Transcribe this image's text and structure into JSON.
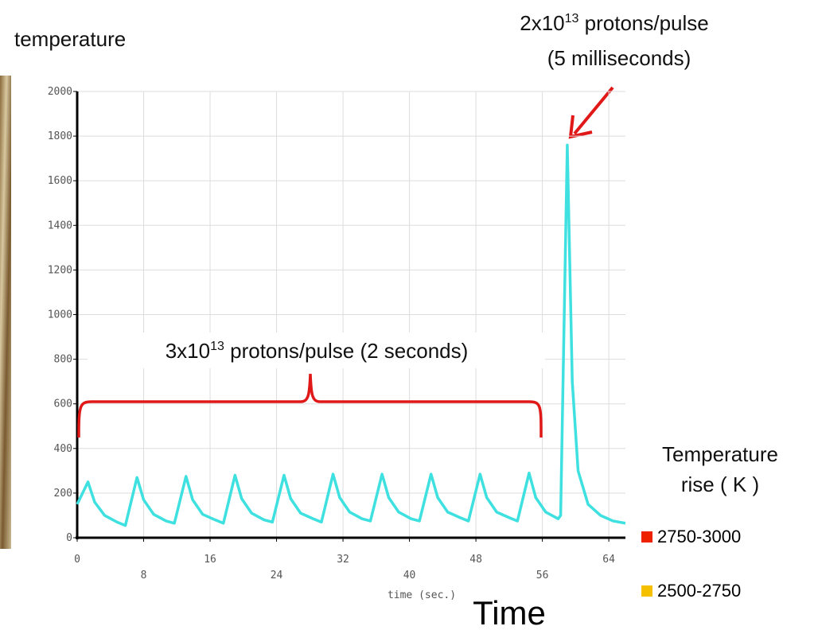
{
  "chart_data": {
    "type": "line",
    "title": "temperature",
    "x_label": "time (sec.)",
    "big_x_label": "Time",
    "x": [
      0,
      1.3,
      2.1,
      3.3,
      4.8,
      5.8,
      7.2,
      8.0,
      9.2,
      10.7,
      11.7,
      13.1,
      13.9,
      15.1,
      16.6,
      17.6,
      19.0,
      19.8,
      21.0,
      22.5,
      23.5,
      24.9,
      25.7,
      26.9,
      28.4,
      29.4,
      30.8,
      31.6,
      32.8,
      34.3,
      35.3,
      36.7,
      37.5,
      38.7,
      40.2,
      41.2,
      42.6,
      43.4,
      44.6,
      46.1,
      47.1,
      48.5,
      49.3,
      50.5,
      52.0,
      53.0,
      54.4,
      55.2,
      56.4,
      57.9,
      58.2,
      59.0,
      59.6,
      60.3,
      61.5,
      63.0,
      64.5,
      66
    ],
    "series": [
      {
        "color": "#3ee0e0",
        "values": [
          150,
          250,
          160,
          100,
          70,
          55,
          270,
          170,
          105,
          75,
          65,
          275,
          170,
          105,
          80,
          65,
          280,
          175,
          110,
          80,
          70,
          280,
          175,
          110,
          85,
          70,
          285,
          180,
          115,
          85,
          75,
          285,
          180,
          115,
          85,
          75,
          285,
          180,
          115,
          90,
          75,
          285,
          180,
          115,
          90,
          75,
          290,
          180,
          115,
          85,
          100,
          1760,
          700,
          300,
          150,
          100,
          75,
          65
        ]
      }
    ],
    "xlim": [
      0,
      66
    ],
    "ylim": [
      0,
      2000
    ],
    "xticks": [
      0,
      8,
      16,
      24,
      32,
      40,
      48,
      56,
      64
    ],
    "yticks": [
      0,
      200,
      400,
      600,
      800,
      1000,
      1200,
      1400,
      1600,
      1800,
      2000
    ],
    "grid": true,
    "annotations": [
      {
        "parts": [
          "2x10",
          "13",
          " protons/pulse"
        ],
        "line2": "(5 milliseconds)"
      },
      {
        "parts": [
          "3x10",
          "13",
          " protons/pulse (2 seconds)"
        ]
      }
    ],
    "legend": {
      "title_lines": [
        "Temperature",
        "rise ( K )"
      ],
      "items": [
        {
          "label": "2750-3000",
          "color": "#ee2200"
        },
        {
          "label": "2500-2750",
          "color": "#f5c000"
        }
      ]
    }
  }
}
